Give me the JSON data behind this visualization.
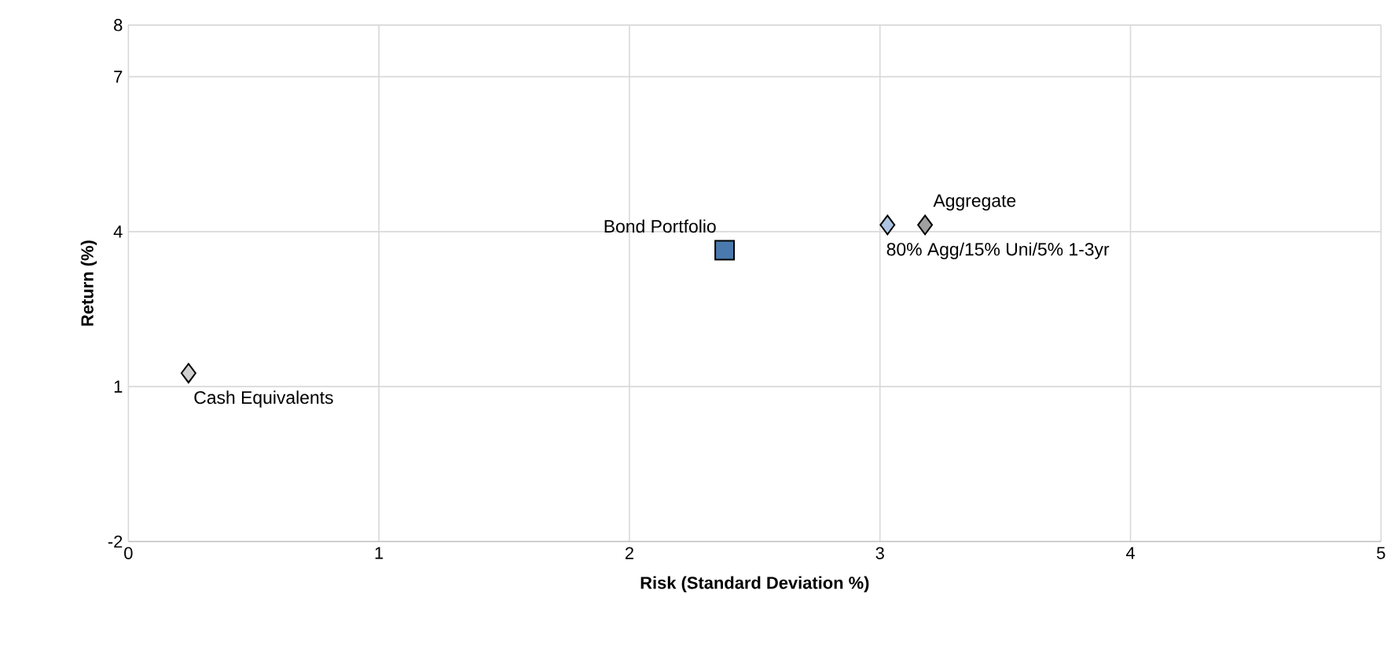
{
  "chart_data": {
    "type": "scatter",
    "xlabel": "Risk (Standard Deviation %)",
    "ylabel": "Return (%)",
    "xlim": [
      0,
      5
    ],
    "xticks": [
      0,
      1,
      2,
      3,
      4,
      5
    ],
    "ylim": [
      -2,
      8
    ],
    "yticks": [
      -2,
      1,
      4,
      7,
      8
    ],
    "grid": true,
    "series": [
      {
        "name": "Cash Equivalents",
        "color": "#d0d0d0",
        "marker": "diamond",
        "x": [
          0.24
        ],
        "values": [
          1.26
        ]
      },
      {
        "name": "Bond Portfolio",
        "color": "#4a7aad",
        "marker": "square",
        "x": [
          2.38
        ],
        "values": [
          3.64
        ]
      },
      {
        "name": "80% Agg/15% Uni/5% 1-3yr",
        "color": "#adc4e0",
        "marker": "diamond",
        "x": [
          3.03
        ],
        "values": [
          4.13
        ]
      },
      {
        "name": "Aggregate",
        "color": "#a0a0a0",
        "marker": "diamond",
        "x": [
          3.18
        ],
        "values": [
          4.13
        ]
      }
    ]
  }
}
